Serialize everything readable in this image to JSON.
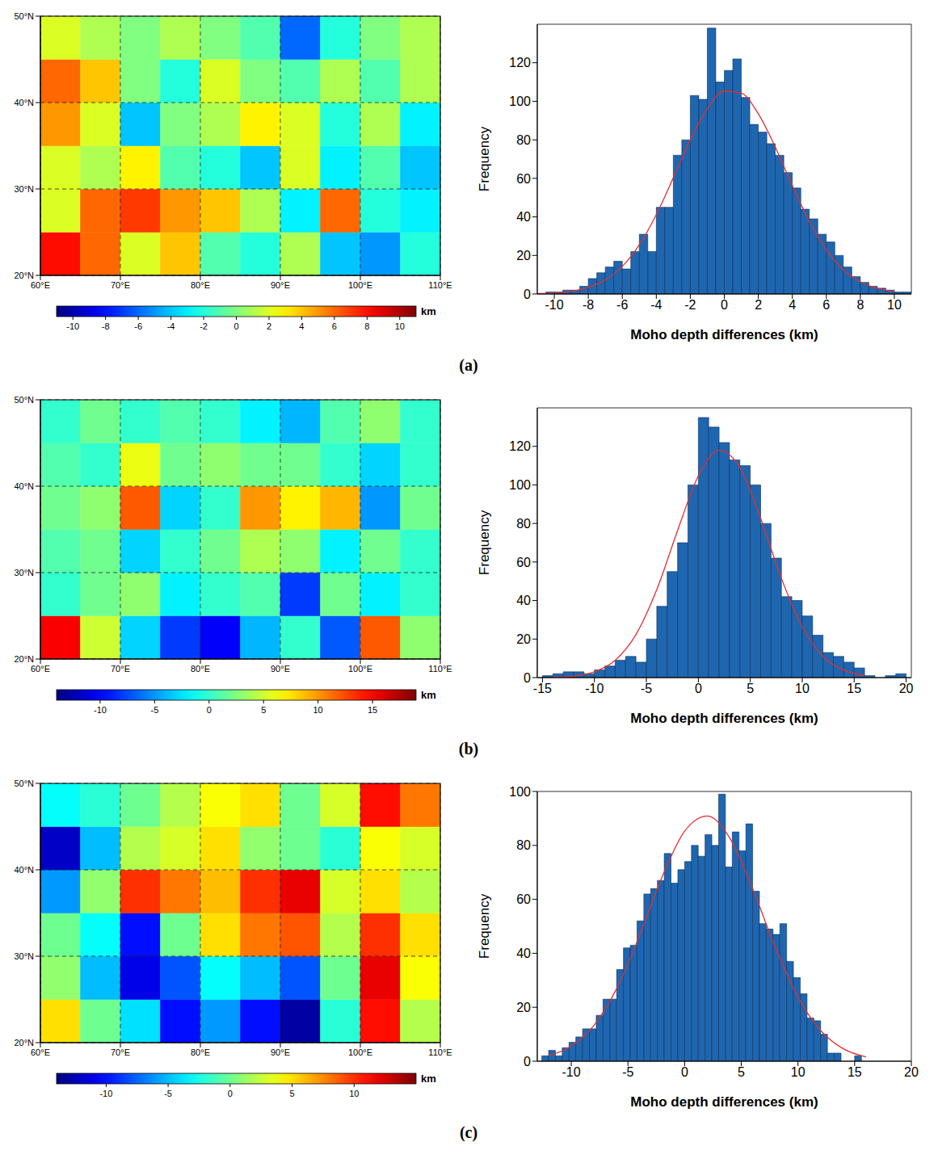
{
  "chart_data": [
    {
      "type": "heatmap",
      "xlim": [
        60,
        110
      ],
      "ylim": [
        20,
        50
      ],
      "xticks": [
        {
          "value": 60,
          "label": "60°E"
        },
        {
          "value": 70,
          "label": "70°E"
        },
        {
          "value": 80,
          "label": "80°E"
        },
        {
          "value": 90,
          "label": "90°E"
        },
        {
          "value": 100,
          "label": "100°E"
        },
        {
          "value": 110,
          "label": "110°E"
        }
      ],
      "yticks": [
        {
          "value": 20,
          "label": "20°N"
        },
        {
          "value": 30,
          "label": "30°N"
        },
        {
          "value": 40,
          "label": "40°N"
        },
        {
          "value": 50,
          "label": "50°N"
        }
      ],
      "grid": true,
      "x_edges": [
        60,
        65,
        70,
        75,
        80,
        85,
        90,
        95,
        100,
        105,
        110
      ],
      "y_edges": [
        20,
        25,
        30,
        35,
        40,
        45,
        50
      ],
      "cells": [
        [
          8,
          6,
          2,
          4,
          -1,
          -2,
          1,
          -4,
          -5,
          -2
        ],
        [
          2,
          6,
          7,
          5,
          4,
          1,
          -3,
          6,
          -2,
          -3
        ],
        [
          2,
          1,
          3,
          -1,
          -2,
          -4,
          2,
          -3,
          -1,
          -4
        ],
        [
          5,
          2,
          -4,
          0,
          1,
          3,
          2,
          -2,
          1,
          -3
        ],
        [
          6,
          4,
          0,
          -2,
          2,
          0,
          -1,
          1,
          -1,
          1
        ],
        [
          2,
          1,
          0,
          1,
          0,
          -1,
          -6,
          -2,
          0,
          1
        ]
      ],
      "colorbar": {
        "range": [
          -11,
          11
        ],
        "ticks": [
          -10,
          -8,
          -6,
          -4,
          -2,
          0,
          2,
          4,
          6,
          8,
          10
        ],
        "label": "km"
      }
    },
    {
      "type": "histogram",
      "x_label": "Moho depth differences (km)",
      "y_label": "Frequency",
      "xlim": [
        -11,
        11
      ],
      "ylim": [
        0,
        140
      ],
      "xticks": [
        -10,
        -8,
        -6,
        -4,
        -2,
        0,
        2,
        4,
        6,
        8,
        10
      ],
      "yticks": [
        0,
        20,
        40,
        60,
        80,
        100,
        120
      ],
      "color": "#1f66b0",
      "bins": [
        -10.5,
        -10,
        -9.5,
        -9,
        -8.5,
        -8,
        -7.5,
        -7,
        -6.5,
        -6,
        -5.5,
        -5,
        -4.5,
        -4,
        -3.5,
        -3,
        -2.5,
        -2,
        -1.5,
        -1,
        -0.5,
        0,
        0.5,
        1,
        1.5,
        2,
        2.5,
        3,
        3.5,
        4,
        4.5,
        5,
        5.5,
        6,
        6.5,
        7,
        7.5,
        8,
        8.5,
        9,
        9.5,
        10,
        10.5,
        11
      ],
      "counts": [
        1,
        1,
        2,
        2,
        4,
        8,
        11,
        14,
        17,
        13,
        22,
        31,
        22,
        45,
        45,
        72,
        80,
        103,
        101,
        138,
        110,
        116,
        122,
        102,
        88,
        84,
        78,
        72,
        63,
        55,
        44,
        39,
        31,
        27,
        20,
        14,
        9,
        6,
        4,
        3,
        2,
        1,
        1
      ],
      "fit": {
        "type": "line",
        "color": "#e03030",
        "x": [
          -11,
          -10,
          -9,
          -8,
          -7,
          -6,
          -5,
          -4,
          -3,
          -2,
          -1,
          0,
          1,
          2,
          3,
          4,
          5,
          6,
          7,
          8,
          9,
          10
        ],
        "values": [
          0.2,
          0.5,
          1.4,
          3.4,
          7.3,
          14.3,
          25.5,
          41.2,
          60.3,
          80.0,
          96.3,
          105.2,
          104.2,
          93.5,
          76.2,
          56.3,
          37.7,
          22.9,
          12.6,
          6.3,
          2.9,
          1.2
        ]
      }
    },
    {
      "type": "heatmap",
      "xlim": [
        60,
        110
      ],
      "ylim": [
        20,
        50
      ],
      "xticks": [
        {
          "value": 60,
          "label": "60°E"
        },
        {
          "value": 70,
          "label": "70°E"
        },
        {
          "value": 80,
          "label": "80°E"
        },
        {
          "value": 90,
          "label": "90°E"
        },
        {
          "value": 100,
          "label": "100°E"
        },
        {
          "value": 110,
          "label": "110°E"
        }
      ],
      "yticks": [
        {
          "value": 20,
          "label": "20°N"
        },
        {
          "value": 30,
          "label": "30°N"
        },
        {
          "value": 40,
          "label": "40°N"
        },
        {
          "value": 50,
          "label": "50°N"
        }
      ],
      "grid": true,
      "x_edges": [
        60,
        65,
        70,
        75,
        80,
        85,
        90,
        95,
        100,
        105,
        110
      ],
      "y_edges": [
        20,
        25,
        30,
        35,
        40,
        45,
        50
      ],
      "cells": [
        [
          15,
          5,
          -3,
          -8,
          -10,
          -4,
          0,
          -7,
          12,
          3
        ],
        [
          0,
          2,
          3,
          -2,
          0,
          1,
          -8,
          2,
          -2,
          0
        ],
        [
          1,
          2,
          -3,
          0,
          2,
          4,
          3,
          -2,
          2,
          0
        ],
        [
          2,
          3,
          12,
          -3,
          0,
          10,
          7,
          9,
          -5,
          2
        ],
        [
          1,
          0,
          6,
          2,
          3,
          2,
          2,
          0,
          -3,
          0
        ],
        [
          0,
          2,
          0,
          1,
          0,
          -2,
          -4,
          1,
          3,
          0
        ]
      ],
      "colorbar": {
        "range": [
          -14,
          19
        ],
        "ticks": [
          -10,
          -5,
          0,
          5,
          10,
          15
        ],
        "label": "km"
      }
    },
    {
      "type": "histogram",
      "x_label": "Moho depth differences (km)",
      "y_label": "Frequency",
      "xlim": [
        -15.5,
        20.5
      ],
      "ylim": [
        0,
        140
      ],
      "xticks": [
        -15,
        -10,
        -5,
        0,
        5,
        10,
        15,
        20
      ],
      "yticks": [
        0,
        20,
        40,
        60,
        80,
        100,
        120
      ],
      "color": "#1f66b0",
      "bins": [
        -15,
        -14,
        -13,
        -12,
        -11,
        -10,
        -9,
        -8,
        -7,
        -6,
        -5,
        -4,
        -3,
        -2,
        -1,
        0,
        1,
        2,
        3,
        4,
        5,
        6,
        7,
        8,
        9,
        10,
        11,
        12,
        13,
        14,
        15,
        16,
        17,
        18,
        19,
        20
      ],
      "counts": [
        1,
        2,
        3,
        3,
        2,
        4,
        6,
        9,
        11,
        8,
        20,
        37,
        55,
        70,
        100,
        135,
        130,
        122,
        113,
        110,
        100,
        80,
        62,
        42,
        40,
        32,
        22,
        13,
        11,
        8,
        5,
        1,
        0,
        1,
        2
      ],
      "fit": {
        "type": "line",
        "color": "#e03030",
        "x": [
          -14,
          -12,
          -10,
          -8,
          -6,
          -4,
          -2,
          0,
          2,
          4,
          6,
          8,
          10,
          12,
          14,
          16
        ],
        "values": [
          0.2,
          0.8,
          3.0,
          9.0,
          22.4,
          45.7,
          76.3,
          104.7,
          117.9,
          108.9,
          82.6,
          51.4,
          26.3,
          11.0,
          3.8,
          1.1
        ]
      }
    },
    {
      "type": "heatmap",
      "xlim": [
        60,
        110
      ],
      "ylim": [
        20,
        50
      ],
      "xticks": [
        {
          "value": 60,
          "label": "60°E"
        },
        {
          "value": 70,
          "label": "70°E"
        },
        {
          "value": 80,
          "label": "80°E"
        },
        {
          "value": 90,
          "label": "90°E"
        },
        {
          "value": 100,
          "label": "100°E"
        },
        {
          "value": 110,
          "label": "110°E"
        }
      ],
      "yticks": [
        {
          "value": 20,
          "label": "20°N"
        },
        {
          "value": 30,
          "label": "30°N"
        },
        {
          "value": 40,
          "label": "40°N"
        },
        {
          "value": 50,
          "label": "50°N"
        }
      ],
      "grid": true,
      "x_edges": [
        60,
        65,
        70,
        75,
        80,
        85,
        90,
        95,
        100,
        105,
        110
      ],
      "y_edges": [
        20,
        25,
        30,
        35,
        40,
        45,
        50
      ],
      "cells": [
        [
          5,
          0,
          -4,
          -10,
          -6,
          -10,
          -13,
          -2,
          11,
          2
        ],
        [
          1,
          -5,
          -11,
          -8,
          -3,
          -5,
          -8,
          0,
          12,
          4
        ],
        [
          0,
          -3,
          -10,
          0,
          5,
          8,
          9,
          2,
          10,
          5
        ],
        [
          -6,
          1,
          10,
          8,
          6,
          10,
          12,
          3,
          5,
          2
        ],
        [
          -12,
          -5,
          2,
          3,
          5,
          1,
          0,
          -2,
          4,
          3
        ],
        [
          -3,
          -2,
          0,
          2,
          4,
          5,
          0,
          3,
          11,
          8
        ]
      ],
      "colorbar": {
        "range": [
          -14,
          15
        ],
        "ticks": [
          -10,
          -5,
          0,
          5,
          10
        ],
        "label": "km"
      }
    },
    {
      "type": "histogram",
      "x_label": "Moho depth differences (km)",
      "y_label": "Frequency",
      "xlim": [
        -13,
        20
      ],
      "ylim": [
        0,
        100
      ],
      "xticks": [
        -10,
        -5,
        0,
        5,
        10,
        15,
        20
      ],
      "yticks": [
        0,
        20,
        40,
        60,
        80,
        100
      ],
      "color": "#1f66b0",
      "bins": [
        -12.6,
        -12.0,
        -11.4,
        -10.8,
        -10.2,
        -9.6,
        -9.0,
        -8.4,
        -7.8,
        -7.2,
        -6.6,
        -6.0,
        -5.4,
        -4.8,
        -4.2,
        -3.6,
        -3.0,
        -2.4,
        -1.8,
        -1.2,
        -0.6,
        0.0,
        0.6,
        1.2,
        1.8,
        2.4,
        3.0,
        3.6,
        4.2,
        4.8,
        5.4,
        6.0,
        6.6,
        7.2,
        7.8,
        8.4,
        9.0,
        9.6,
        10.2,
        10.8,
        11.4,
        12.0,
        12.6,
        13.2,
        13.8,
        14.4,
        15.0,
        15.6
      ],
      "counts": [
        2,
        4,
        2,
        5,
        7,
        9,
        12,
        12,
        17,
        23,
        23,
        34,
        42,
        43,
        52,
        62,
        64,
        67,
        77,
        66,
        71,
        74,
        80,
        76,
        84,
        80,
        99,
        72,
        85,
        78,
        88,
        63,
        51,
        49,
        47,
        51,
        37,
        31,
        25,
        16,
        15,
        10,
        3,
        3,
        0,
        0,
        2
      ],
      "fit": {
        "type": "line",
        "color": "#e03030",
        "x": [
          -12,
          -10,
          -8,
          -6,
          -4,
          -2,
          0,
          2,
          4,
          6,
          8,
          10,
          12,
          14,
          16
        ],
        "values": [
          2.0,
          5.6,
          13.3,
          26.9,
          46.4,
          68.2,
          85.3,
          90.9,
          82.6,
          63.9,
          42.2,
          23.7,
          11.4,
          4.6,
          1.6
        ]
      }
    }
  ],
  "panel_labels": [
    "(a)",
    "(b)",
    "(c)"
  ]
}
